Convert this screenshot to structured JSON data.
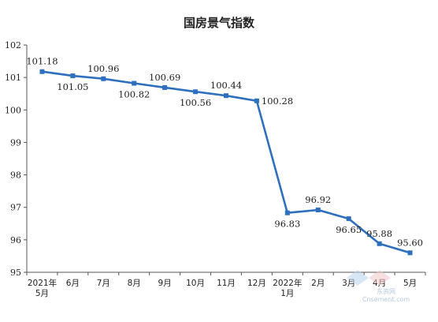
{
  "chart_data": {
    "type": "line",
    "title": "国房景气指数",
    "xlabel": "",
    "ylabel": "",
    "ylim": [
      95,
      102
    ],
    "yticks": [
      "95",
      "96",
      "97",
      "98",
      "99",
      "100",
      "101",
      "102"
    ],
    "categories": [
      [
        "2021年",
        "5月"
      ],
      [
        "6月"
      ],
      [
        "7月"
      ],
      [
        "8月"
      ],
      [
        "9月"
      ],
      [
        "10月"
      ],
      [
        "11月"
      ],
      [
        "12月"
      ],
      [
        "2022年",
        "1月"
      ],
      [
        "2月"
      ],
      [
        "3月"
      ],
      [
        "4月"
      ],
      [
        "5月"
      ]
    ],
    "values": [
      101.18,
      101.05,
      100.96,
      100.82,
      100.69,
      100.56,
      100.44,
      100.28,
      96.83,
      96.92,
      96.65,
      95.88,
      95.6
    ],
    "labels": [
      "101.18",
      "101.05",
      "100.96",
      "100.82",
      "100.69",
      "100.56",
      "100.44",
      "100.28",
      "96.83",
      "96.92",
      "96.65",
      "95.88",
      "95.60"
    ],
    "label_position": [
      "above",
      "below",
      "above",
      "below",
      "above",
      "below",
      "above",
      "right",
      "below",
      "above",
      "below",
      "above",
      "above"
    ],
    "grid": false,
    "line_color": "#2e6fbe",
    "axis_color": "#555555"
  },
  "watermark": {
    "text_cn": "东资网",
    "text_en": "Cnsement.com"
  }
}
